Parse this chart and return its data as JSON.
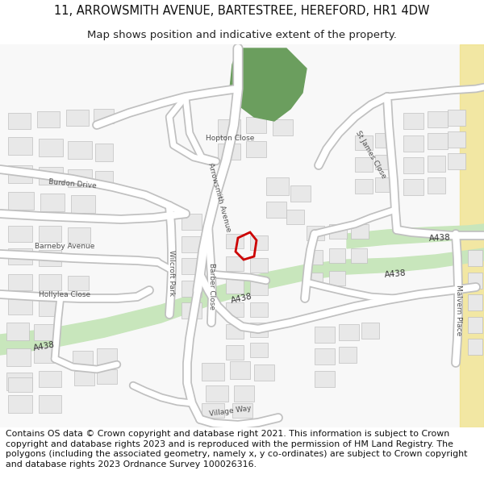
{
  "title_line1": "11, ARROWSMITH AVENUE, BARTESTREE, HEREFORD, HR1 4DW",
  "title_line2": "Map shows position and indicative extent of the property.",
  "footer_text": "Contains OS data © Crown copyright and database right 2021. This information is subject to Crown copyright and database rights 2023 and is reproduced with the permission of HM Land Registry. The polygons (including the associated geometry, namely x, y co-ordinates) are subject to Crown copyright and database rights 2023 Ordnance Survey 100026316.",
  "bg_color": "#ffffff",
  "map_bg": "#f7f7f7",
  "road_fill": "#ffffff",
  "road_outline": "#c8c8c8",
  "green_road_fill": "#c8e6bc",
  "yellow_strip": "#f0e080",
  "property_color": "#cc0000",
  "green_patch_color": "#6b9e5e",
  "label_color": "#505050",
  "road_label_color": "#333333"
}
